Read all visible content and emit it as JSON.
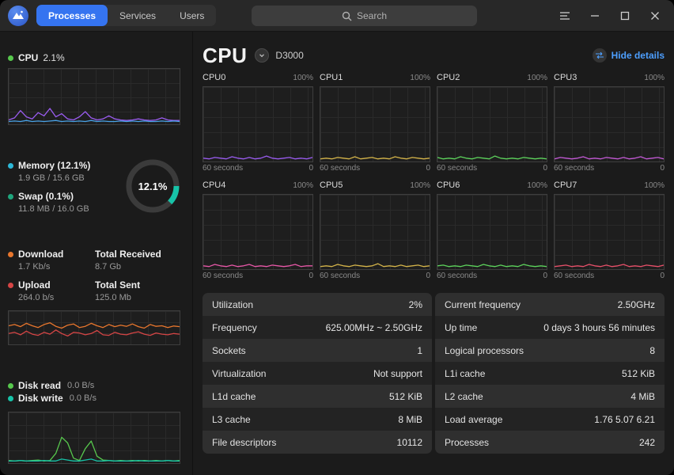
{
  "titlebar": {
    "tabs": [
      {
        "label": "Processes",
        "active": true
      },
      {
        "label": "Services",
        "active": false
      },
      {
        "label": "Users",
        "active": false
      }
    ],
    "search": {
      "placeholder": "Search"
    }
  },
  "colors": {
    "accent_blue": "#3574f0",
    "link_blue": "#4d9fff",
    "cpu_line": "#9a5cf0",
    "download_line": "#e8762d",
    "upload_line": "#d64545",
    "disk_read_line": "#57c84d",
    "disk_write_line": "#17c3a8"
  },
  "sidebar": {
    "cpu": {
      "label": "CPU",
      "value": "2.1%",
      "dot_color": "#57c84d",
      "chart": {
        "ymax": 100,
        "series": [
          {
            "name": "cpu-usage",
            "color": "#9a5cf0",
            "points": [
              6,
              10,
              24,
              12,
              8,
              20,
              14,
              28,
              12,
              18,
              8,
              6,
              12,
              22,
              10,
              6,
              8,
              14,
              8,
              6,
              5,
              6,
              8,
              6,
              5,
              6,
              10,
              6,
              5,
              5
            ]
          },
          {
            "name": "cpu-secondary",
            "color": "#4aa3e8",
            "points": [
              3,
              4,
              3,
              5,
              3,
              4,
              3,
              4,
              5,
              3,
              4,
              3,
              4,
              3,
              5,
              3,
              4,
              3,
              3,
              4,
              3,
              4,
              3,
              4,
              3,
              3,
              4,
              3,
              4,
              3
            ]
          }
        ]
      }
    },
    "memory": {
      "label": "Memory (12.1%)",
      "detail": "1.9 GB / 15.6 GB",
      "dot_color": "#2db8d8",
      "percent": 12.1,
      "percent_label": "12.1%",
      "ring_color": "#17c3a8"
    },
    "swap": {
      "label": "Swap (0.1%)",
      "detail": "11.8 MB / 16.0 GB",
      "dot_color": "#1fa67d"
    },
    "network": {
      "download_label": "Download",
      "download_value": "1.7 Kb/s",
      "download_dot_color": "#e8762d",
      "received_label": "Total Received",
      "received_value": "8.7 Gb",
      "upload_label": "Upload",
      "upload_value": "264.0 b/s",
      "upload_dot_color": "#d64545",
      "sent_label": "Total Sent",
      "sent_value": "125.0 Mb",
      "chart": {
        "ymax": 100,
        "series": [
          {
            "name": "download",
            "color": "#e8762d",
            "points": [
              58,
              62,
              55,
              66,
              58,
              52,
              62,
              68,
              56,
              50,
              60,
              64,
              52,
              56,
              66,
              58,
              52,
              62,
              55,
              60,
              56,
              64,
              55,
              50,
              62,
              56,
              58,
              52,
              57,
              55
            ]
          },
          {
            "name": "upload",
            "color": "#d64545",
            "points": [
              32,
              36,
              28,
              40,
              30,
              26,
              36,
              30,
              44,
              32,
              24,
              36,
              34,
              28,
              32,
              42,
              28,
              26,
              36,
              30,
              28,
              34,
              38,
              30,
              26,
              34,
              30,
              28,
              32,
              30
            ]
          }
        ]
      }
    },
    "disk": {
      "read_label": "Disk read",
      "read_value": "0.0 B/s",
      "read_dot_color": "#57c84d",
      "write_label": "Disk write",
      "write_value": "0.0 B/s",
      "write_dot_color": "#17c3a8",
      "chart": {
        "ymax": 100,
        "series": [
          {
            "name": "disk-read",
            "color": "#57c84d",
            "points": [
              3,
              2,
              3,
              2,
              3,
              4,
              2,
              3,
              18,
              52,
              40,
              8,
              3,
              28,
              44,
              12,
              4,
              3,
              2,
              3,
              2,
              3,
              2,
              3,
              2,
              3,
              2,
              3,
              2,
              3
            ]
          },
          {
            "name": "disk-write",
            "color": "#17c3a8",
            "points": [
              2,
              2,
              3,
              2,
              2,
              2,
              3,
              2,
              2,
              6,
              4,
              2,
              2,
              4,
              6,
              2,
              2,
              3,
              2,
              2,
              2,
              2,
              3,
              2,
              2,
              2,
              2,
              3,
              2,
              2
            ]
          }
        ]
      }
    }
  },
  "main": {
    "title": "CPU",
    "model": "D3000",
    "hide_details_label": "Hide details",
    "core_labels": {
      "max": "100%",
      "duration": "60 seconds",
      "zero": "0"
    },
    "cores": [
      {
        "name": "CPU0",
        "chart": {
          "ymax": 100,
          "series": [
            {
              "color": "#9a5cf0",
              "points": [
                3,
                2,
                4,
                3,
                2,
                5,
                3,
                2,
                4,
                2,
                3,
                6,
                3,
                2,
                3,
                4,
                2,
                3,
                2,
                4
              ]
            }
          ]
        }
      },
      {
        "name": "CPU1",
        "chart": {
          "ymax": 100,
          "series": [
            {
              "color": "#d4b44a",
              "points": [
                2,
                3,
                2,
                4,
                3,
                2,
                5,
                2,
                3,
                4,
                2,
                3,
                2,
                5,
                3,
                2,
                4,
                3,
                2,
                3
              ]
            }
          ]
        }
      },
      {
        "name": "CPU2",
        "chart": {
          "ymax": 100,
          "series": [
            {
              "color": "#5dd35c",
              "points": [
                4,
                2,
                3,
                2,
                5,
                3,
                2,
                4,
                3,
                2,
                6,
                3,
                2,
                3,
                2,
                4,
                3,
                2,
                3,
                2
              ]
            }
          ]
        }
      },
      {
        "name": "CPU3",
        "chart": {
          "ymax": 100,
          "series": [
            {
              "color": "#c45ad6",
              "points": [
                2,
                4,
                3,
                2,
                3,
                5,
                2,
                3,
                2,
                4,
                3,
                2,
                4,
                2,
                3,
                5,
                2,
                3,
                4,
                2
              ]
            }
          ]
        }
      },
      {
        "name": "CPU4",
        "chart": {
          "ymax": 100,
          "series": [
            {
              "color": "#e858a8",
              "points": [
                3,
                2,
                5,
                3,
                2,
                4,
                2,
                3,
                5,
                2,
                3,
                2,
                4,
                3,
                2,
                3,
                5,
                2,
                3,
                3
              ]
            }
          ]
        }
      },
      {
        "name": "CPU5",
        "chart": {
          "ymax": 100,
          "series": [
            {
              "color": "#d4b44a",
              "points": [
                2,
                3,
                2,
                5,
                3,
                2,
                4,
                3,
                2,
                3,
                6,
                2,
                3,
                2,
                4,
                2,
                3,
                4,
                2,
                3
              ]
            }
          ]
        }
      },
      {
        "name": "CPU6",
        "chart": {
          "ymax": 100,
          "series": [
            {
              "color": "#5dd35c",
              "points": [
                3,
                4,
                2,
                3,
                2,
                4,
                3,
                2,
                5,
                3,
                2,
                4,
                2,
                3,
                2,
                5,
                3,
                2,
                3,
                2
              ]
            }
          ]
        }
      },
      {
        "name": "CPU7",
        "chart": {
          "ymax": 100,
          "series": [
            {
              "color": "#e8506a",
              "points": [
                2,
                3,
                4,
                2,
                3,
                2,
                5,
                3,
                2,
                4,
                2,
                3,
                5,
                2,
                3,
                2,
                4,
                3,
                2,
                4
              ]
            }
          ]
        }
      }
    ],
    "details": {
      "left": [
        {
          "key": "Utilization",
          "value": "2%"
        },
        {
          "key": "Frequency",
          "value": "625.00MHz ~ 2.50GHz"
        },
        {
          "key": "Sockets",
          "value": "1"
        },
        {
          "key": "Virtualization",
          "value": "Not support"
        },
        {
          "key": "L1d cache",
          "value": "512 KiB"
        },
        {
          "key": "L3 cache",
          "value": "8 MiB"
        },
        {
          "key": "File descriptors",
          "value": "10112"
        }
      ],
      "right": [
        {
          "key": "Current frequency",
          "value": "2.50GHz"
        },
        {
          "key": "Up time",
          "value": "0 days 3 hours 56 minutes"
        },
        {
          "key": "Logical processors",
          "value": "8"
        },
        {
          "key": "L1i cache",
          "value": "512 KiB"
        },
        {
          "key": "L2 cache",
          "value": "4 MiB"
        },
        {
          "key": "Load average",
          "value": "1.76 5.07 6.21"
        },
        {
          "key": "Processes",
          "value": "242"
        }
      ]
    }
  }
}
